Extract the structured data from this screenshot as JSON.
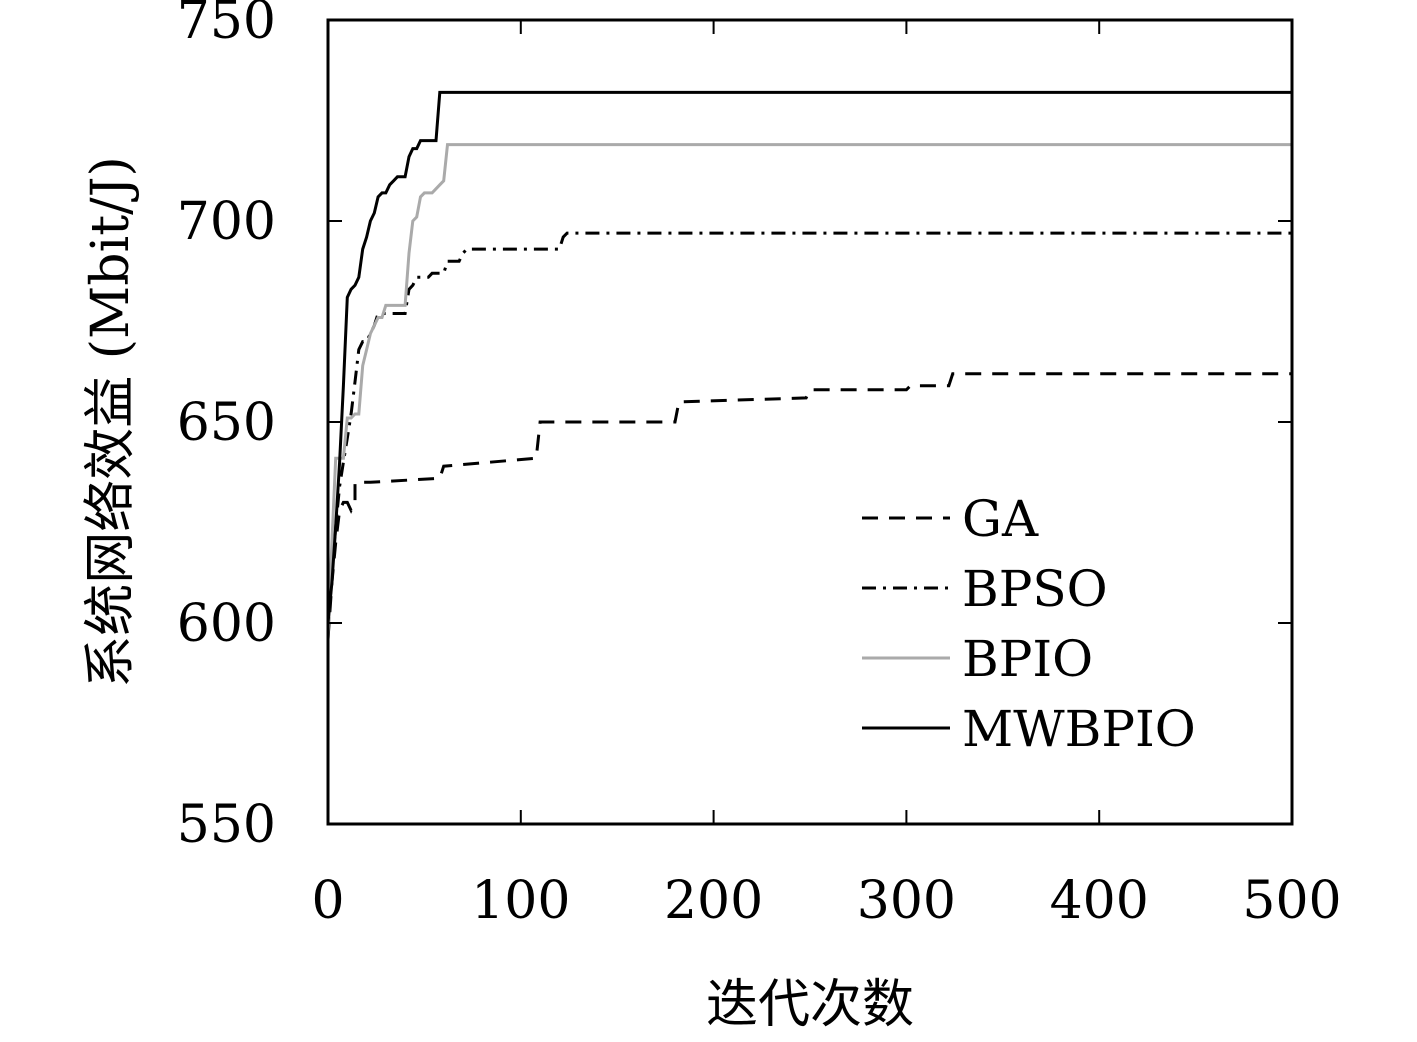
{
  "chart_data": {
    "type": "line",
    "title": "",
    "xlabel": "迭代次数",
    "ylabel": "系统网络效益 (Mbit/J)",
    "xlim": [
      0,
      500
    ],
    "ylim": [
      550,
      750
    ],
    "xticks": [
      0,
      100,
      200,
      300,
      400,
      500
    ],
    "yticks": [
      550,
      600,
      650,
      700,
      750
    ],
    "grid": false,
    "legend_position": "lower-right",
    "series": [
      {
        "name": "GA",
        "color": "#000000",
        "dash": "dashed",
        "x": [
          0,
          2,
          4,
          6,
          8,
          10,
          12,
          14,
          14,
          20,
          22,
          58,
          60,
          108,
          110,
          180,
          182,
          248,
          250,
          300,
          302,
          322,
          324,
          500
        ],
        "y": [
          596,
          610,
          620,
          628,
          630,
          630,
          628,
          630,
          635,
          635,
          635,
          636,
          639,
          641,
          650,
          650,
          655,
          656,
          658,
          658,
          659,
          659,
          662,
          662
        ]
      },
      {
        "name": "BPSO",
        "color": "#000000",
        "dash": "dashdot",
        "x": [
          0,
          2,
          4,
          6,
          8,
          10,
          12,
          14,
          16,
          18,
          20,
          22,
          24,
          26,
          28,
          30,
          32,
          40,
          42,
          44,
          46,
          52,
          54,
          60,
          62,
          68,
          70,
          72,
          120,
          122,
          124,
          500
        ],
        "y": [
          598,
          612,
          624,
          634,
          640,
          646,
          652,
          660,
          668,
          670,
          670,
          672,
          674,
          677,
          677,
          677,
          677,
          677,
          683,
          684,
          686,
          686,
          687,
          687,
          690,
          690,
          692,
          693,
          693,
          696,
          697,
          697
        ]
      },
      {
        "name": "BPIO",
        "color": "#aaaaaa",
        "dash": "solid",
        "x": [
          0,
          2,
          4,
          6,
          8,
          10,
          12,
          14,
          16,
          18,
          20,
          22,
          24,
          26,
          28,
          30,
          40,
          42,
          44,
          46,
          48,
          50,
          54,
          56,
          58,
          60,
          62,
          500
        ],
        "y": [
          596,
          620,
          641,
          641,
          641,
          651,
          651,
          652,
          652,
          664,
          668,
          672,
          674,
          676,
          676,
          679,
          679,
          692,
          700,
          701,
          706,
          707,
          707,
          708,
          709,
          710,
          719,
          719
        ]
      },
      {
        "name": "MWBPIO",
        "color": "#000000",
        "dash": "solid",
        "x": [
          0,
          2,
          4,
          6,
          8,
          10,
          12,
          14,
          16,
          18,
          20,
          22,
          24,
          26,
          28,
          30,
          32,
          34,
          36,
          40,
          42,
          44,
          46,
          48,
          50,
          54,
          56,
          58,
          500
        ],
        "y": [
          600,
          610,
          624,
          640,
          659,
          681,
          683,
          684,
          686,
          693,
          696,
          700,
          702,
          706,
          707,
          707,
          709,
          710,
          711,
          711,
          716,
          718,
          718,
          720,
          720,
          720,
          720,
          732,
          732
        ]
      }
    ]
  }
}
